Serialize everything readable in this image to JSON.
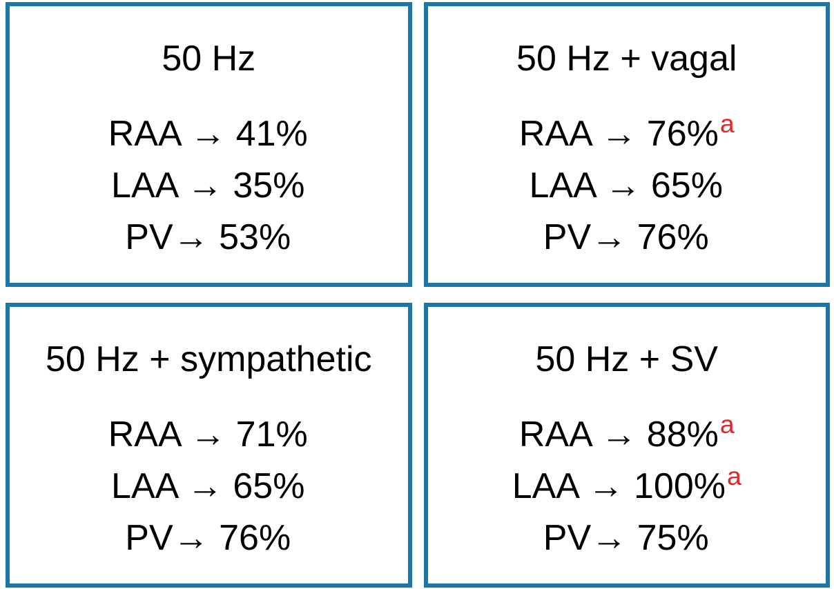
{
  "figure": {
    "border_color": "#1b77a8",
    "text_color": "#000000",
    "footnote_color": "#e2262a",
    "panels": [
      {
        "id": "50hz",
        "title": "50 Hz",
        "lines": [
          {
            "text": "RAA → 41%",
            "sup": ""
          },
          {
            "text": "LAA → 35%",
            "sup": ""
          },
          {
            "text": "PV→ 53%",
            "sup": ""
          }
        ]
      },
      {
        "id": "50hz-vagal",
        "title": "50 Hz + vagal",
        "lines": [
          {
            "text": "RAA → 76%",
            "sup": "a"
          },
          {
            "text": "LAA → 65%",
            "sup": ""
          },
          {
            "text": "PV→ 76%",
            "sup": ""
          }
        ]
      },
      {
        "id": "50hz-sympathetic",
        "title": "50 Hz + sympathetic",
        "lines": [
          {
            "text": "RAA → 71%",
            "sup": ""
          },
          {
            "text": "LAA → 65%",
            "sup": ""
          },
          {
            "text": "PV→ 76%",
            "sup": ""
          }
        ]
      },
      {
        "id": "50hz-sv",
        "title": "50 Hz + SV",
        "lines": [
          {
            "text": "RAA → 88%",
            "sup": "a"
          },
          {
            "text": "LAA → 100%",
            "sup": "a"
          },
          {
            "text": "PV→ 75%",
            "sup": ""
          }
        ]
      }
    ]
  }
}
